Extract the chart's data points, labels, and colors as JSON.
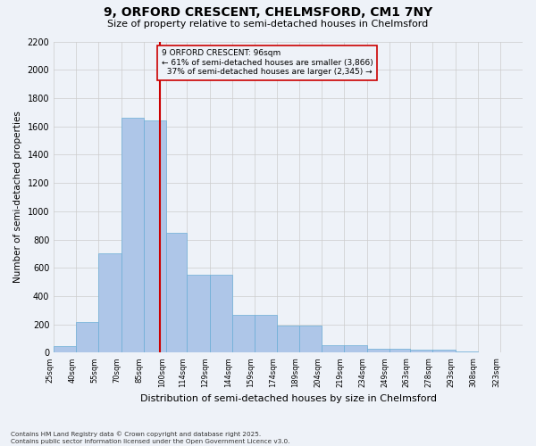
{
  "title": "9, ORFORD CRESCENT, CHELMSFORD, CM1 7NY",
  "subtitle": "Size of property relative to semi-detached houses in Chelmsford",
  "xlabel": "Distribution of semi-detached houses by size in Chelmsford",
  "ylabel": "Number of semi-detached properties",
  "property_label": "9 ORFORD CRESCENT: 96sqm",
  "pct_smaller": 61,
  "pct_larger": 37,
  "count_smaller": 3866,
  "count_larger": 2345,
  "categories": [
    "25sqm",
    "40sqm",
    "55sqm",
    "70sqm",
    "85sqm",
    "100sqm",
    "114sqm",
    "129sqm",
    "144sqm",
    "159sqm",
    "174sqm",
    "189sqm",
    "204sqm",
    "219sqm",
    "234sqm",
    "249sqm",
    "263sqm",
    "278sqm",
    "293sqm",
    "308sqm",
    "323sqm"
  ],
  "bin_left_edges": [
    25,
    40,
    55,
    70,
    85,
    100,
    114,
    129,
    144,
    159,
    174,
    189,
    204,
    219,
    234,
    249,
    263,
    278,
    293,
    308,
    323
  ],
  "bin_widths": [
    15,
    15,
    15,
    15,
    15,
    14,
    15,
    15,
    15,
    15,
    15,
    15,
    15,
    15,
    15,
    14,
    15,
    15,
    15,
    15,
    15
  ],
  "bar_heights": [
    50,
    220,
    700,
    1660,
    1640,
    850,
    550,
    550,
    270,
    270,
    190,
    190,
    55,
    55,
    30,
    30,
    20,
    20,
    10,
    5,
    0
  ],
  "vline_x": 96,
  "bar_color": "#aec6e8",
  "bar_edge_color": "#6baed6",
  "vline_color": "#cc0000",
  "ann_box_edge_color": "#cc0000",
  "ylim_max": 2200,
  "yticks": [
    0,
    200,
    400,
    600,
    800,
    1000,
    1200,
    1400,
    1600,
    1800,
    2000,
    2200
  ],
  "grid_color": "#cccccc",
  "bg_color": "#eef2f8",
  "footer": "Contains HM Land Registry data © Crown copyright and database right 2025.\nContains public sector information licensed under the Open Government Licence v3.0."
}
